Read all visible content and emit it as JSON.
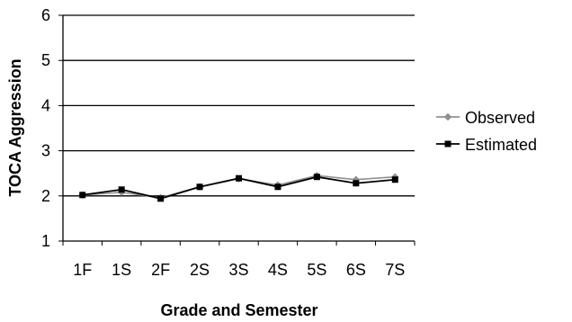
{
  "chart_data": {
    "type": "line",
    "categories": [
      "1F",
      "1S",
      "2F",
      "2S",
      "3S",
      "4S",
      "5S",
      "6S",
      "7S"
    ],
    "series": [
      {
        "name": "Observed",
        "values": [
          2.02,
          2.08,
          1.96,
          2.2,
          2.38,
          2.24,
          2.45,
          2.36,
          2.42
        ],
        "color": "#909090",
        "marker": "diamond"
      },
      {
        "name": "Estimated",
        "values": [
          2.02,
          2.14,
          1.94,
          2.2,
          2.39,
          2.2,
          2.42,
          2.28,
          2.36
        ],
        "color": "#000000",
        "marker": "square"
      }
    ],
    "xlabel": "Grade and Semester",
    "ylabel": "TOCA Aggression",
    "ylim": [
      1,
      6
    ],
    "yticks": [
      "1",
      "2",
      "3",
      "4",
      "5",
      "6"
    ],
    "grid": "horizontal",
    "legend": "right"
  }
}
